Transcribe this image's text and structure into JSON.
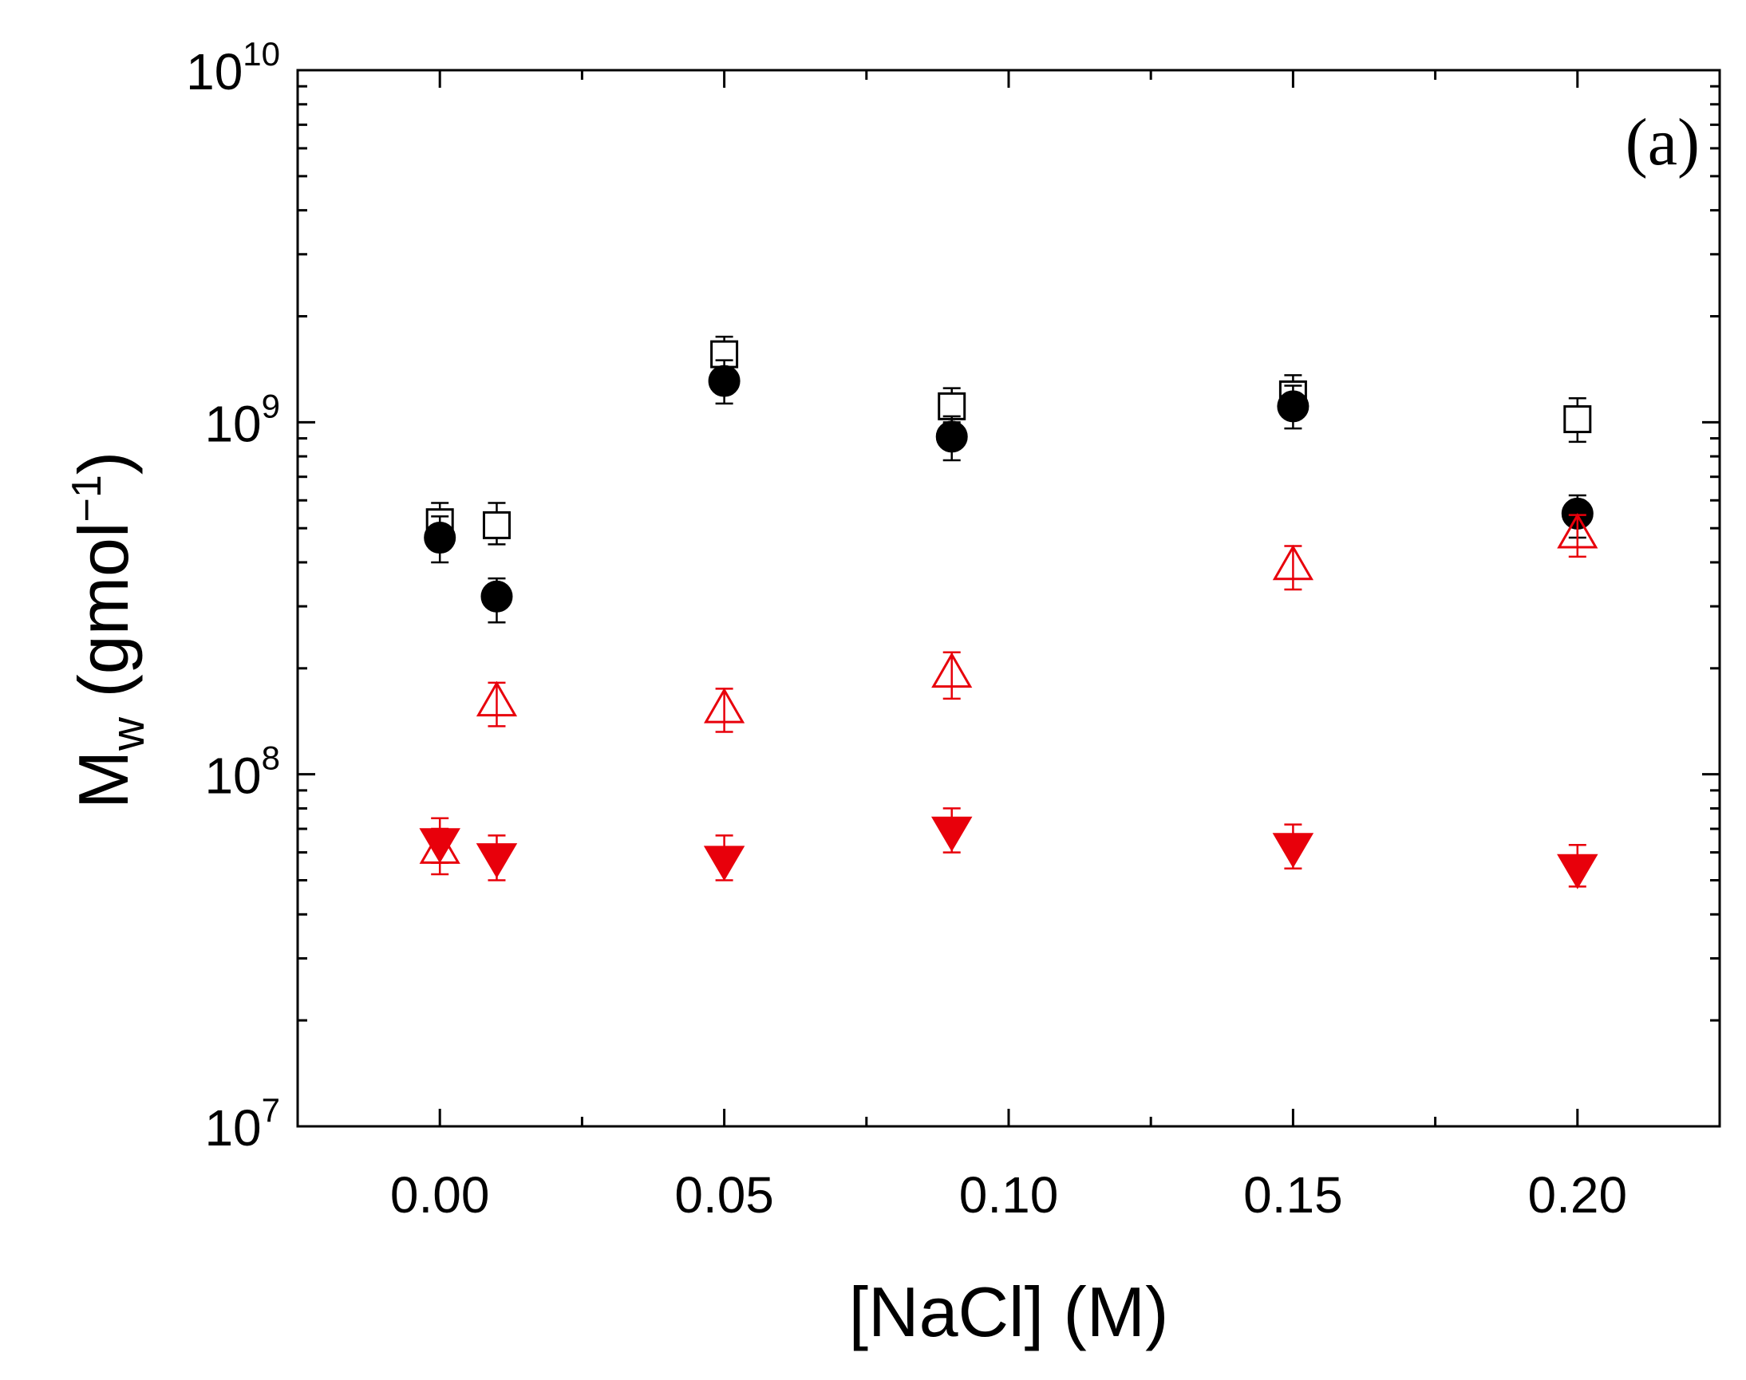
{
  "chart_data": {
    "type": "scatter",
    "panel_label": "(a)",
    "title": "",
    "xlabel": "[NaCl] (M)",
    "ylabel": {
      "main": "M",
      "subscript": "w",
      "unit_prefix": " (gmol",
      "unit_sup": "−1",
      "unit_suffix": ")"
    },
    "xlim": [
      -0.025,
      0.225
    ],
    "ylim": [
      10000000,
      10000000000
    ],
    "yscale": "log",
    "x_ticks": [
      0.0,
      0.05,
      0.1,
      0.15,
      0.2
    ],
    "x_tick_labels": [
      "0.00",
      "0.05",
      "0.10",
      "0.15",
      "0.20"
    ],
    "x_minor_ticks": [
      0.025,
      0.075,
      0.125,
      0.175
    ],
    "y_ticks": [
      {
        "value": 10000000,
        "base": "10",
        "exp": "7"
      },
      {
        "value": 100000000,
        "base": "10",
        "exp": "8"
      },
      {
        "value": 1000000000,
        "base": "10",
        "exp": "9"
      },
      {
        "value": 10000000000,
        "base": "10",
        "exp": "10"
      }
    ],
    "series": [
      {
        "name": "open squares",
        "marker": "square-open",
        "color": "#000000",
        "points": [
          {
            "x": 0.0,
            "y": 520000000,
            "err_low": 470000000,
            "err_high": 590000000
          },
          {
            "x": 0.01,
            "y": 510000000,
            "err_low": 450000000,
            "err_high": 590000000
          },
          {
            "x": 0.05,
            "y": 1560000000,
            "err_low": 1400000000,
            "err_high": 1750000000
          },
          {
            "x": 0.09,
            "y": 1110000000,
            "err_low": 1000000000,
            "err_high": 1250000000
          },
          {
            "x": 0.15,
            "y": 1200000000,
            "err_low": 1080000000,
            "err_high": 1360000000
          },
          {
            "x": 0.2,
            "y": 1020000000,
            "err_low": 880000000,
            "err_high": 1170000000
          }
        ]
      },
      {
        "name": "filled circles",
        "marker": "circle-filled",
        "color": "#000000",
        "points": [
          {
            "x": 0.0,
            "y": 470000000,
            "err_low": 400000000,
            "err_high": 540000000
          },
          {
            "x": 0.01,
            "y": 320000000,
            "err_low": 270000000,
            "err_high": 360000000
          },
          {
            "x": 0.05,
            "y": 1310000000,
            "err_low": 1130000000,
            "err_high": 1500000000
          },
          {
            "x": 0.09,
            "y": 910000000,
            "err_low": 780000000,
            "err_high": 1040000000
          },
          {
            "x": 0.15,
            "y": 1110000000,
            "err_low": 960000000,
            "err_high": 1270000000
          },
          {
            "x": 0.2,
            "y": 550000000,
            "err_low": 470000000,
            "err_high": 620000000
          }
        ]
      },
      {
        "name": "open triangles",
        "marker": "triangle-up-open",
        "color": "#e8000b",
        "points": [
          {
            "x": 0.0,
            "y": 61000000,
            "err_low": 52000000,
            "err_high": 70000000
          },
          {
            "x": 0.01,
            "y": 160000000,
            "err_low": 137000000,
            "err_high": 182000000
          },
          {
            "x": 0.05,
            "y": 153000000,
            "err_low": 132000000,
            "err_high": 175000000
          },
          {
            "x": 0.09,
            "y": 193000000,
            "err_low": 164000000,
            "err_high": 222000000
          },
          {
            "x": 0.15,
            "y": 390000000,
            "err_low": 335000000,
            "err_high": 445000000
          },
          {
            "x": 0.2,
            "y": 480000000,
            "err_low": 415000000,
            "err_high": 545000000
          }
        ]
      },
      {
        "name": "filled inverted triangles",
        "marker": "triangle-down-filled",
        "color": "#e8000b",
        "points": [
          {
            "x": 0.0,
            "y": 64000000,
            "err_low": 56000000,
            "err_high": 75000000
          },
          {
            "x": 0.01,
            "y": 58000000,
            "err_low": 50000000,
            "err_high": 67000000
          },
          {
            "x": 0.05,
            "y": 57000000,
            "err_low": 50000000,
            "err_high": 67000000
          },
          {
            "x": 0.09,
            "y": 69000000,
            "err_low": 60000000,
            "err_high": 80000000
          },
          {
            "x": 0.15,
            "y": 62000000,
            "err_low": 54000000,
            "err_high": 72000000
          },
          {
            "x": 0.2,
            "y": 54000000,
            "err_low": 48000000,
            "err_high": 63000000
          }
        ]
      }
    ]
  }
}
